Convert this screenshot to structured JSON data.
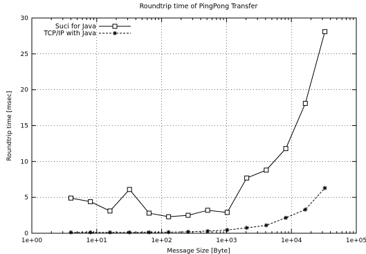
{
  "chart_data": {
    "type": "line",
    "title": "Roundtrip time of PingPong Transfer",
    "xlabel": "Message Size [Byte]",
    "ylabel": "Roundtrip time [msec]",
    "x_scale": "log",
    "xlim": [
      1,
      100000
    ],
    "ylim": [
      0,
      30
    ],
    "grid": true,
    "legend_position": "top-left",
    "x_ticks": [
      1,
      10,
      100,
      1000,
      10000,
      100000
    ],
    "x_tick_labels": [
      "1e+00",
      "1e+01",
      "1e+02",
      "1e+03",
      "1e+04",
      "1e+05"
    ],
    "y_ticks": [
      0,
      5,
      10,
      15,
      20,
      25,
      30
    ],
    "y_tick_labels": [
      "0",
      "5",
      "10",
      "15",
      "20",
      "25",
      "30"
    ],
    "x": [
      4,
      8,
      16,
      32,
      64,
      128,
      256,
      512,
      1024,
      2048,
      4096,
      8192,
      16384,
      32768
    ],
    "series": [
      {
        "name": "Suci for Java",
        "marker": "open-square",
        "line": "solid",
        "color": "#000000",
        "values": [
          4.9,
          4.4,
          3.1,
          6.1,
          2.8,
          2.3,
          2.5,
          3.2,
          2.9,
          7.7,
          8.8,
          11.8,
          18.1,
          28.1
        ]
      },
      {
        "name": "TCP/IP with Java",
        "marker": "asterisk",
        "line": "dashed",
        "color": "#000000",
        "values": [
          0.12,
          0.12,
          0.12,
          0.12,
          0.13,
          0.15,
          0.2,
          0.3,
          0.45,
          0.75,
          1.1,
          2.15,
          3.3,
          6.3
        ]
      }
    ]
  }
}
